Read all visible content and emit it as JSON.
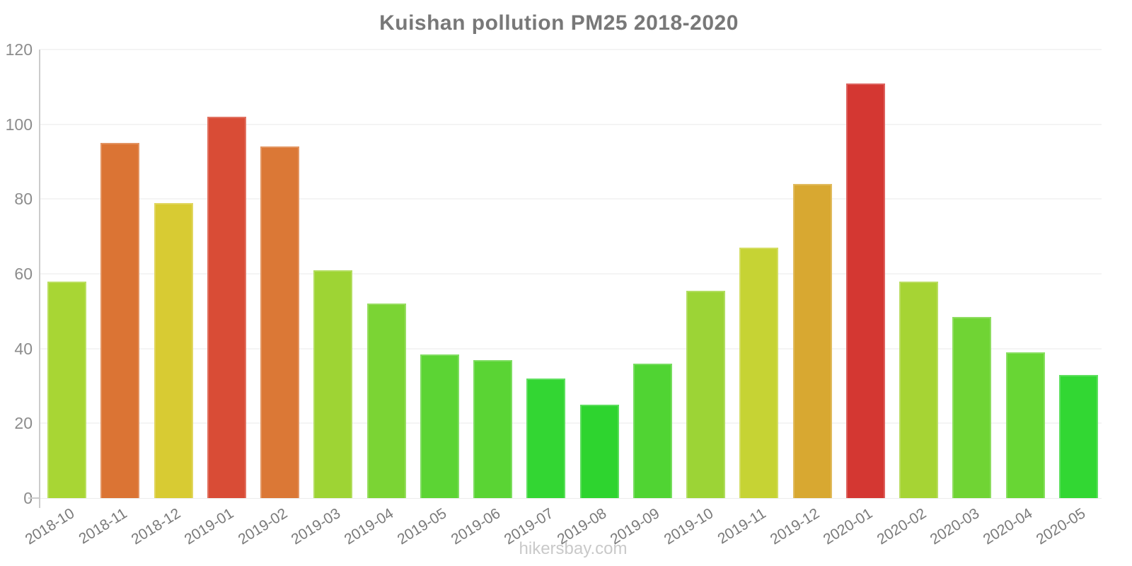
{
  "page": {
    "title": "Kuishan pollution PM25 2018-2020",
    "watermark": "hikersbay.com"
  },
  "chart_data": {
    "type": "bar",
    "title": "Kuishan pollution PM25 2018-2020",
    "xlabel": "",
    "ylabel": "",
    "ylim": [
      0,
      120
    ],
    "y_ticks": [
      0,
      20,
      40,
      60,
      80,
      100,
      120
    ],
    "grid": true,
    "legend": false,
    "categories": [
      "2018-10",
      "2018-11",
      "2018-12",
      "2019-01",
      "2019-02",
      "2019-03",
      "2019-04",
      "2019-05",
      "2019-06",
      "2019-07",
      "2019-08",
      "2019-09",
      "2019-10",
      "2019-11",
      "2019-12",
      "2020-01",
      "2020-02",
      "2020-03",
      "2020-04",
      "2020-05"
    ],
    "values": [
      58,
      95,
      79,
      102,
      94,
      61,
      52,
      38.5,
      37,
      32,
      25,
      36,
      55.5,
      67,
      84,
      111,
      58,
      48.5,
      39,
      33
    ],
    "bar_colors": [
      "#a8d634",
      "#db7434",
      "#d8cb33",
      "#d94c36",
      "#db7836",
      "#9ed434",
      "#7bd434",
      "#5cd434",
      "#5ad434",
      "#33d633",
      "#2ed42f",
      "#50d433",
      "#9cd436",
      "#c6d334",
      "#d8a831",
      "#d43732",
      "#a6d434",
      "#70d434",
      "#68d634",
      "#32d733"
    ]
  },
  "colors": {
    "background": "#ffffff",
    "title_text": "#787878",
    "axis_line": "#cccccc",
    "tick_label_text": "#8c8c8c",
    "x_label_text": "#7a7a7a",
    "gridline": "#f4f4f4",
    "watermark_text": "#c9c9c9"
  }
}
